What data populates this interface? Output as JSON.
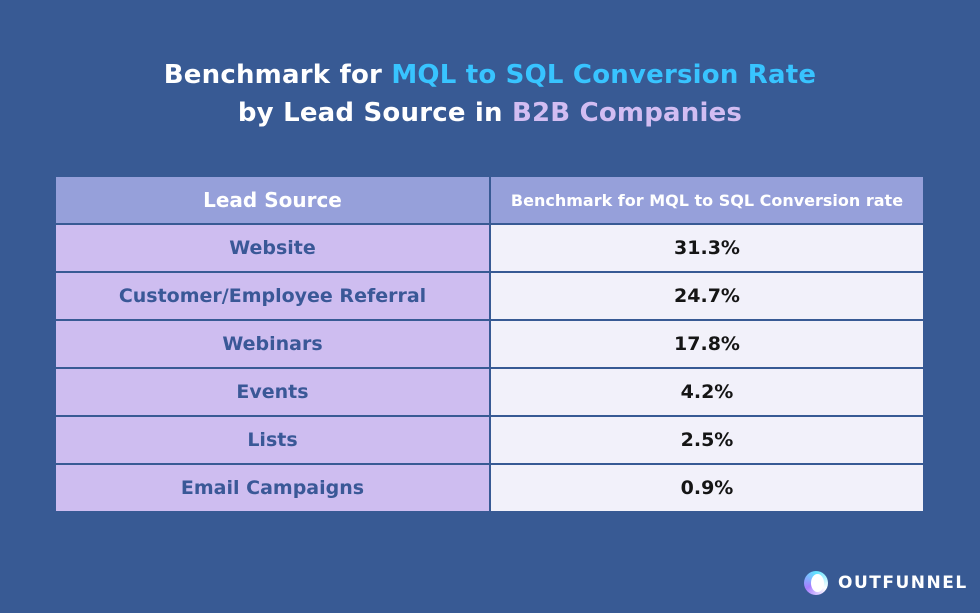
{
  "title": {
    "line1_pre": "Benchmark for ",
    "line1_highlight": "MQL to SQL Conversion Rate",
    "line2_pre": "by Lead Source in ",
    "line2_highlight": "B2B Companies"
  },
  "colors": {
    "background": "#385a94",
    "title_highlight_1": "#38c4ff",
    "title_highlight_2": "#d2bdf2",
    "header_bg": "#96a0da",
    "source_cell_bg": "#cebdf0",
    "value_cell_bg": "#f2f1fa"
  },
  "chart_data": {
    "type": "table",
    "title": "Benchmark for MQL to SQL Conversion Rate by Lead Source in B2B Companies",
    "columns": [
      "Lead Source",
      "Benchmark for MQL to SQL Conversion rate"
    ],
    "rows": [
      [
        "Website",
        "31.3%"
      ],
      [
        "Customer/Employee Referral",
        "24.7%"
      ],
      [
        "Webinars",
        "17.8%"
      ],
      [
        "Events",
        "4.2%"
      ],
      [
        "Lists",
        "2.5%"
      ],
      [
        "Email Campaigns",
        "0.9%"
      ]
    ]
  },
  "brand": {
    "logo_icon": "outfunnel-logo-icon",
    "name": "OUTFUNNEL"
  }
}
